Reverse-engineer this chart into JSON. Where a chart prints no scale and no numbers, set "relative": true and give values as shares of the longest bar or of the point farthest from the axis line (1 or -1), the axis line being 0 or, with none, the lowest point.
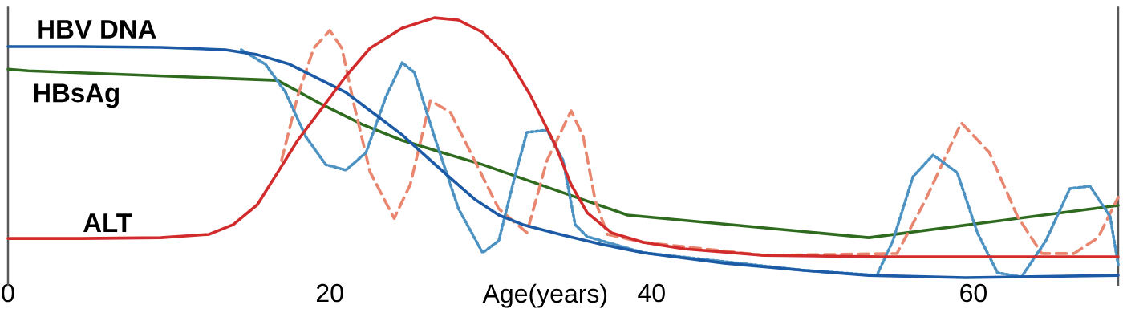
{
  "chart_data": {
    "type": "line",
    "relative": true,
    "xlabel": "Age(years)",
    "xlim": [
      0,
      69
    ],
    "xticks": [
      0,
      20,
      40,
      60
    ],
    "grid": false,
    "marker": "none",
    "series": [
      {
        "name": "HBsAg",
        "color": "#2f6b1f",
        "line_style": "solid",
        "x": [
          0,
          1.25,
          16.75,
          19.5,
          22,
          24.5,
          27,
          29.5,
          34.5,
          38.5,
          53.5,
          69
        ],
        "values": [
          0.802,
          0.796,
          0.759,
          0.667,
          0.59,
          0.528,
          0.481,
          0.435,
          0.327,
          0.241,
          0.154,
          0.278
        ]
      },
      {
        "color": "#e8866f",
        "line_style": "dashed",
        "x": [
          17,
          18,
          19,
          20,
          20.75,
          21.5,
          22.5,
          24,
          25,
          26.25,
          27.5,
          29,
          30.5,
          32.25,
          33.5,
          35,
          35.75,
          36.5,
          37.25,
          39.5,
          47,
          55.25,
          57,
          59.25,
          61,
          62.75,
          64.25,
          66.25,
          67.75,
          69
        ],
        "values": [
          0.451,
          0.698,
          0.883,
          0.951,
          0.883,
          0.667,
          0.407,
          0.228,
          0.358,
          0.682,
          0.636,
          0.451,
          0.265,
          0.173,
          0.451,
          0.642,
          0.543,
          0.296,
          0.167,
          0.136,
          0.086,
          0.093,
          0.296,
          0.596,
          0.481,
          0.235,
          0.093,
          0.093,
          0.154,
          0.309
        ]
      },
      {
        "color": "#4b92c3",
        "line_style": "dotted",
        "x": [
          14.5,
          16,
          17.25,
          18.5,
          19.75,
          21,
          22.25,
          23.5,
          24.5,
          25.25,
          26.5,
          28,
          29.5,
          30.5,
          31.5,
          32.25,
          33.5,
          34.5,
          35.25,
          36,
          39.5,
          49.5,
          54,
          55,
          56.25,
          57.5,
          59,
          60.25,
          61.5,
          63,
          64.5,
          66,
          67.25,
          68.5,
          69
        ],
        "values": [
          0.877,
          0.821,
          0.713,
          0.543,
          0.435,
          0.414,
          0.481,
          0.698,
          0.827,
          0.79,
          0.543,
          0.265,
          0.096,
          0.142,
          0.389,
          0.559,
          0.568,
          0.451,
          0.204,
          0.158,
          0.096,
          0.028,
          0.009,
          0.142,
          0.389,
          0.472,
          0.404,
          0.173,
          0.019,
          0.003,
          0.142,
          0.343,
          0.352,
          0.235,
          0.05
        ]
      },
      {
        "name": "HBV DNA",
        "color": "#1c5aa6",
        "line_style": "solid",
        "x": [
          0,
          4.5,
          9.5,
          13.5,
          15.5,
          17.5,
          19.5,
          21,
          23,
          24.5,
          26,
          27.5,
          29,
          30.5,
          32,
          34.5,
          37,
          39.5,
          44.5,
          49.5,
          53.5,
          59.5,
          69
        ],
        "values": [
          0.889,
          0.889,
          0.886,
          0.877,
          0.858,
          0.821,
          0.759,
          0.713,
          0.62,
          0.549,
          0.466,
          0.383,
          0.302,
          0.241,
          0.204,
          0.164,
          0.127,
          0.096,
          0.056,
          0.028,
          0.009,
          0.0,
          0.009
        ]
      },
      {
        "name": "ALT",
        "color": "#d22b2b",
        "line_style": "solid",
        "x": [
          0,
          4.5,
          9.5,
          12.5,
          14,
          15.5,
          16.75,
          18,
          19.5,
          21,
          22.5,
          24.5,
          26.5,
          28,
          29.5,
          31,
          32.5,
          34,
          35,
          36,
          37.5,
          39.5,
          42,
          47,
          54.5,
          69
        ],
        "values": [
          0.151,
          0.151,
          0.154,
          0.167,
          0.204,
          0.281,
          0.404,
          0.528,
          0.651,
          0.775,
          0.883,
          0.96,
          1.0,
          0.991,
          0.944,
          0.852,
          0.698,
          0.512,
          0.358,
          0.25,
          0.173,
          0.136,
          0.111,
          0.086,
          0.08,
          0.08
        ]
      }
    ]
  }
}
